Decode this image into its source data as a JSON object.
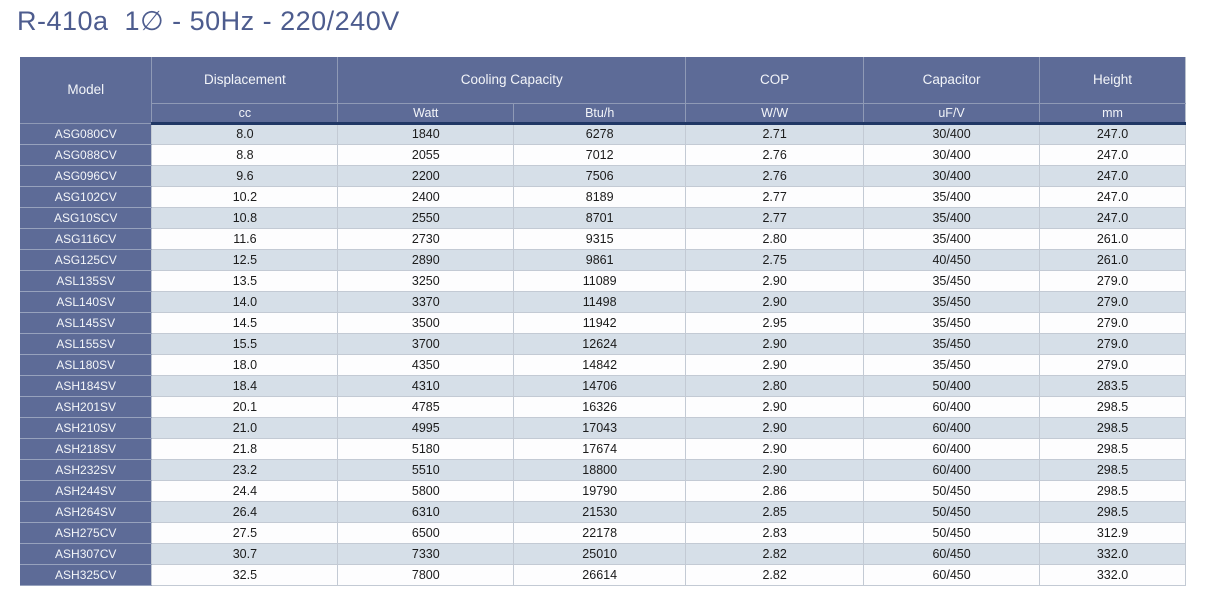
{
  "page": {
    "title": "R-410a  1∅ - 50Hz - 220/240V"
  },
  "colors": {
    "header_bg": "#5d6b97",
    "model_column_bg": "#5d6b97",
    "row_white": "#fdfdfe",
    "row_alt_blue": "#d6dfe8",
    "navy_divider": "#203765",
    "grid_line": "#c3cad4",
    "title_color": "#4d5c8e",
    "header_text": "#f3f5f9"
  },
  "table": {
    "headers": {
      "model": "Model",
      "displacement": "Displacement",
      "cooling_capacity": "Cooling Capacity",
      "cop": "COP",
      "capacitor": "Capacitor",
      "height": "Height"
    },
    "units": {
      "displacement": "cc",
      "watt": "Watt",
      "btu": "Btu/h",
      "cop": "W/W",
      "capacitor": "uF/V",
      "height": "mm"
    },
    "rows": [
      [
        "ASG080CV",
        "8.0",
        "1840",
        "6278",
        "2.71",
        "30/400",
        "247.0"
      ],
      [
        "ASG088CV",
        "8.8",
        "2055",
        "7012",
        "2.76",
        "30/400",
        "247.0"
      ],
      [
        "ASG096CV",
        "9.6",
        "2200",
        "7506",
        "2.76",
        "30/400",
        "247.0"
      ],
      [
        "ASG102CV",
        "10.2",
        "2400",
        "8189",
        "2.77",
        "35/400",
        "247.0"
      ],
      [
        "ASG10SCV",
        "10.8",
        "2550",
        "8701",
        "2.77",
        "35/400",
        "247.0"
      ],
      [
        "ASG116CV",
        "11.6",
        "2730",
        "9315",
        "2.80",
        "35/400",
        "261.0"
      ],
      [
        "ASG125CV",
        "12.5",
        "2890",
        "9861",
        "2.75",
        "40/450",
        "261.0"
      ],
      [
        "ASL135SV",
        "13.5",
        "3250",
        "11089",
        "2.90",
        "35/450",
        "279.0"
      ],
      [
        "ASL140SV",
        "14.0",
        "3370",
        "11498",
        "2.90",
        "35/450",
        "279.0"
      ],
      [
        "ASL145SV",
        "14.5",
        "3500",
        "11942",
        "2.95",
        "35/450",
        "279.0"
      ],
      [
        "ASL155SV",
        "15.5",
        "3700",
        "12624",
        "2.90",
        "35/450",
        "279.0"
      ],
      [
        "ASL180SV",
        "18.0",
        "4350",
        "14842",
        "2.90",
        "35/450",
        "279.0"
      ],
      [
        "ASH184SV",
        "18.4",
        "4310",
        "14706",
        "2.80",
        "50/400",
        "283.5"
      ],
      [
        "ASH201SV",
        "20.1",
        "4785",
        "16326",
        "2.90",
        "60/400",
        "298.5"
      ],
      [
        "ASH210SV",
        "21.0",
        "4995",
        "17043",
        "2.90",
        "60/400",
        "298.5"
      ],
      [
        "ASH218SV",
        "21.8",
        "5180",
        "17674",
        "2.90",
        "60/400",
        "298.5"
      ],
      [
        "ASH232SV",
        "23.2",
        "5510",
        "18800",
        "2.90",
        "60/400",
        "298.5"
      ],
      [
        "ASH244SV",
        "24.4",
        "5800",
        "19790",
        "2.86",
        "50/450",
        "298.5"
      ],
      [
        "ASH264SV",
        "26.4",
        "6310",
        "21530",
        "2.85",
        "50/450",
        "298.5"
      ],
      [
        "ASH275CV",
        "27.5",
        "6500",
        "22178",
        "2.83",
        "50/450",
        "312.9"
      ],
      [
        "ASH307CV",
        "30.7",
        "7330",
        "25010",
        "2.82",
        "60/450",
        "332.0"
      ],
      [
        "ASH325CV",
        "32.5",
        "7800",
        "26614",
        "2.82",
        "60/450",
        "332.0"
      ]
    ]
  }
}
